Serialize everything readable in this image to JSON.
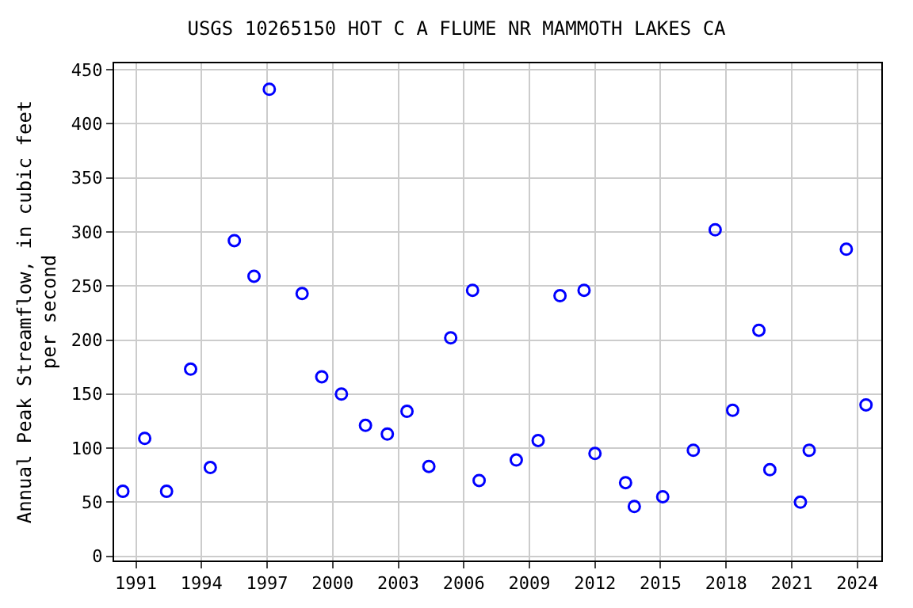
{
  "chart_data": {
    "type": "scatter",
    "title": "USGS 10265150 HOT C A FLUME NR MAMMOTH LAKES CA",
    "ylabel": "Annual Peak Streamflow, in cubic feet\nper second",
    "x": [
      1990.4,
      1991.4,
      1992.4,
      1993.5,
      1994.4,
      1995.5,
      1996.4,
      1997.1,
      1998.6,
      1999.5,
      2000.4,
      2001.5,
      2002.5,
      2003.4,
      2004.4,
      2005.4,
      2006.4,
      2006.7,
      2008.4,
      2009.4,
      2010.4,
      2011.5,
      2012.0,
      2013.4,
      2013.8,
      2015.1,
      2016.5,
      2017.5,
      2018.3,
      2019.5,
      2020.0,
      2021.4,
      2021.8,
      2023.5,
      2024.4
    ],
    "series": [
      {
        "color": "#0000ff",
        "values": [
          60,
          109,
          60,
          173,
          82,
          292,
          259,
          432,
          243,
          166,
          150,
          121,
          113,
          134,
          83,
          202,
          246,
          70,
          89,
          107,
          241,
          246,
          95,
          68,
          46,
          55,
          98,
          302,
          135,
          209,
          80,
          50,
          98,
          284,
          140
        ]
      }
    ],
    "xlim": [
      1990,
      2025.1
    ],
    "xticks": [
      1991,
      1994,
      1997,
      2000,
      2003,
      2006,
      2009,
      2012,
      2015,
      2018,
      2021,
      2024
    ],
    "ylim": [
      -4,
      456
    ],
    "yticks": [
      0,
      50,
      100,
      150,
      200,
      250,
      300,
      350,
      400,
      450
    ],
    "grid": true,
    "marker": "circle",
    "legend": false
  }
}
